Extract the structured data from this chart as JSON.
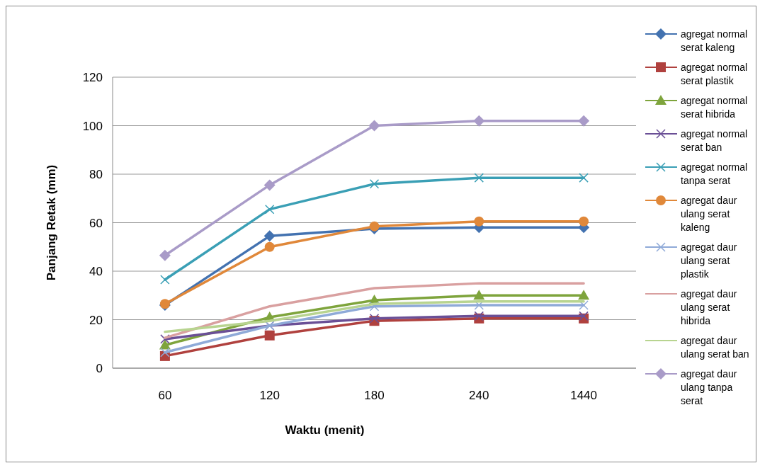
{
  "chart_data": {
    "type": "line",
    "xlabel": "Waktu (menit)",
    "ylabel": "Panjang Retak (mm)",
    "categories": [
      "60",
      "120",
      "180",
      "240",
      "1440"
    ],
    "ylim": [
      0,
      120
    ],
    "yticks": [
      0,
      20,
      40,
      60,
      80,
      100,
      120
    ],
    "grid": "y",
    "legend": "right",
    "series": [
      {
        "name": "agregat normal serat kaleng",
        "color": "#4372b0",
        "marker": "diamond",
        "values": [
          26,
          54.5,
          57.5,
          58,
          58
        ]
      },
      {
        "name": "agregat normal serat plastik",
        "color": "#b0413e",
        "marker": "square",
        "values": [
          5,
          13.5,
          19.5,
          20.5,
          20.5
        ]
      },
      {
        "name": "agregat normal serat hibrida",
        "color": "#7ea43c",
        "marker": "triangle",
        "values": [
          9.5,
          21,
          28,
          30,
          30
        ]
      },
      {
        "name": "agregat normal serat ban",
        "color": "#6a4f96",
        "marker": "cross",
        "values": [
          12,
          17.5,
          20.5,
          21.5,
          21.5
        ]
      },
      {
        "name": "agregat normal tanpa serat",
        "color": "#3a9fb5",
        "marker": "cross",
        "values": [
          36.5,
          65.5,
          76,
          78.5,
          78.5
        ]
      },
      {
        "name": "agregat daur ulang serat kaleng",
        "color": "#e0883a",
        "marker": "circle",
        "values": [
          26.5,
          50,
          58.5,
          60.5,
          60.5
        ]
      },
      {
        "name": "agregat daur ulang serat plastik",
        "color": "#8faad8",
        "marker": "cross",
        "values": [
          6.5,
          17.5,
          25.5,
          26,
          26
        ]
      },
      {
        "name": "agregat daur ulang serat hibrida",
        "color": "#d9a0a0",
        "marker": "none",
        "values": [
          12.5,
          25.5,
          33,
          35,
          35
        ]
      },
      {
        "name": "agregat daur ulang serat ban",
        "color": "#b8d490",
        "marker": "none",
        "values": [
          15,
          19.5,
          26.5,
          27.5,
          27.5
        ]
      },
      {
        "name": "agregat daur ulang tanpa serat",
        "color": "#a99bc8",
        "marker": "diamond",
        "values": [
          46.5,
          75.5,
          100,
          102,
          102
        ]
      }
    ]
  }
}
